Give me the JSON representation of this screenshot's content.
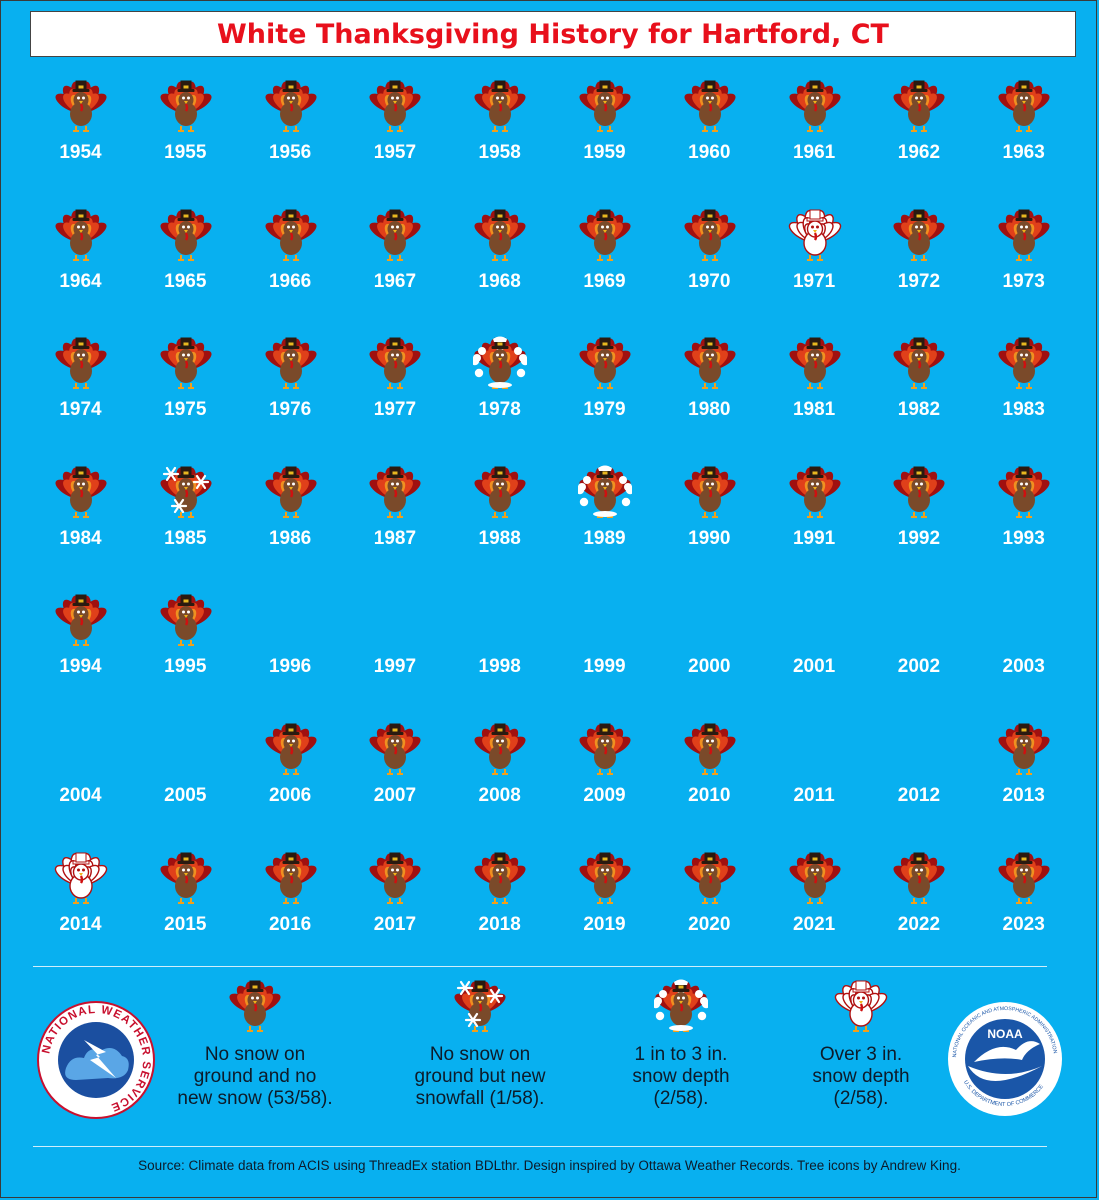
{
  "title": "White Thanksgiving History for Hartford, CT",
  "chart_data": {
    "type": "table",
    "description_categories": {
      "none": "No snow on ground and no new snow (53/58).",
      "snowfall": "No snow on ground but new snowfall (1/58).",
      "depth_1_3": "1 in to 3 in. snow depth (2/58).",
      "depth_over_3": "Over 3 in. snow depth (2/58)."
    },
    "years": [
      {
        "year": "1954",
        "category": "none"
      },
      {
        "year": "1955",
        "category": "none"
      },
      {
        "year": "1956",
        "category": "none"
      },
      {
        "year": "1957",
        "category": "none"
      },
      {
        "year": "1958",
        "category": "none"
      },
      {
        "year": "1959",
        "category": "none"
      },
      {
        "year": "1960",
        "category": "none"
      },
      {
        "year": "1961",
        "category": "none"
      },
      {
        "year": "1962",
        "category": "none"
      },
      {
        "year": "1963",
        "category": "none"
      },
      {
        "year": "1964",
        "category": "none"
      },
      {
        "year": "1965",
        "category": "none"
      },
      {
        "year": "1966",
        "category": "none"
      },
      {
        "year": "1967",
        "category": "none"
      },
      {
        "year": "1968",
        "category": "none"
      },
      {
        "year": "1969",
        "category": "none"
      },
      {
        "year": "1970",
        "category": "none"
      },
      {
        "year": "1971",
        "category": "depth_over_3"
      },
      {
        "year": "1972",
        "category": "none"
      },
      {
        "year": "1973",
        "category": "none"
      },
      {
        "year": "1974",
        "category": "none"
      },
      {
        "year": "1975",
        "category": "none"
      },
      {
        "year": "1976",
        "category": "none"
      },
      {
        "year": "1977",
        "category": "none"
      },
      {
        "year": "1978",
        "category": "depth_1_3"
      },
      {
        "year": "1979",
        "category": "none"
      },
      {
        "year": "1980",
        "category": "none"
      },
      {
        "year": "1981",
        "category": "none"
      },
      {
        "year": "1982",
        "category": "none"
      },
      {
        "year": "1983",
        "category": "none"
      },
      {
        "year": "1984",
        "category": "none"
      },
      {
        "year": "1985",
        "category": "snowfall"
      },
      {
        "year": "1986",
        "category": "none"
      },
      {
        "year": "1987",
        "category": "none"
      },
      {
        "year": "1988",
        "category": "none"
      },
      {
        "year": "1989",
        "category": "depth_1_3"
      },
      {
        "year": "1990",
        "category": "none"
      },
      {
        "year": "1991",
        "category": "none"
      },
      {
        "year": "1992",
        "category": "none"
      },
      {
        "year": "1993",
        "category": "none"
      },
      {
        "year": "1994",
        "category": "none"
      },
      {
        "year": "1995",
        "category": "none"
      },
      {
        "year": "1996",
        "category": "missing"
      },
      {
        "year": "1997",
        "category": "missing"
      },
      {
        "year": "1998",
        "category": "missing"
      },
      {
        "year": "1999",
        "category": "missing"
      },
      {
        "year": "2000",
        "category": "missing"
      },
      {
        "year": "2001",
        "category": "missing"
      },
      {
        "year": "2002",
        "category": "missing"
      },
      {
        "year": "2003",
        "category": "missing"
      },
      {
        "year": "2004",
        "category": "missing"
      },
      {
        "year": "2005",
        "category": "missing"
      },
      {
        "year": "2006",
        "category": "none"
      },
      {
        "year": "2007",
        "category": "none"
      },
      {
        "year": "2008",
        "category": "none"
      },
      {
        "year": "2009",
        "category": "none"
      },
      {
        "year": "2010",
        "category": "none"
      },
      {
        "year": "2011",
        "category": "missing"
      },
      {
        "year": "2012",
        "category": "missing"
      },
      {
        "year": "2013",
        "category": "none"
      },
      {
        "year": "2014",
        "category": "depth_over_3"
      },
      {
        "year": "2015",
        "category": "none"
      },
      {
        "year": "2016",
        "category": "none"
      },
      {
        "year": "2017",
        "category": "none"
      },
      {
        "year": "2018",
        "category": "none"
      },
      {
        "year": "2019",
        "category": "none"
      },
      {
        "year": "2020",
        "category": "none"
      },
      {
        "year": "2021",
        "category": "none"
      },
      {
        "year": "2022",
        "category": "none"
      },
      {
        "year": "2023",
        "category": "none"
      }
    ]
  },
  "legend": [
    {
      "key": "none",
      "lines": [
        "No snow on",
        "ground and no",
        "new snow (53/58)."
      ],
      "icon": "turkey-icon"
    },
    {
      "key": "snowfall",
      "lines": [
        "No snow on",
        "ground but new",
        "snowfall (1/58)."
      ],
      "icon": "turkey-snowflake-icon"
    },
    {
      "key": "depth_1_3",
      "lines": [
        "1 in to 3 in.",
        "snow depth",
        "(2/58)."
      ],
      "icon": "snowy-turkey-icon"
    },
    {
      "key": "depth_over_3",
      "lines": [
        "Over 3 in.",
        "snow depth",
        "(2/58)."
      ],
      "icon": "white-turkey-icon"
    }
  ],
  "logos": {
    "nws": "NATIONAL WEATHER SERVICE",
    "noaa": "NOAA",
    "noaa_ring": "NATIONAL OCEANIC AND ATMOSPHERIC ADMINISTRATION",
    "noaa_ring_bottom": "U.S. DEPARTMENT OF COMMERCE"
  },
  "source": "Source: Climate data from ACIS using ThreadEx station BDLthr. Design inspired by Ottawa Weather Records. Tree icons by Andrew King.",
  "colors": {
    "background": "#08b0f0",
    "title": "#e8101c",
    "turkey_body": "#7a4a2a",
    "feather_outer": "#a01010",
    "feather_mid": "#e0401a",
    "feather_inner": "#f09020",
    "hat": "#2a1a10",
    "snow": "#ffffff"
  }
}
